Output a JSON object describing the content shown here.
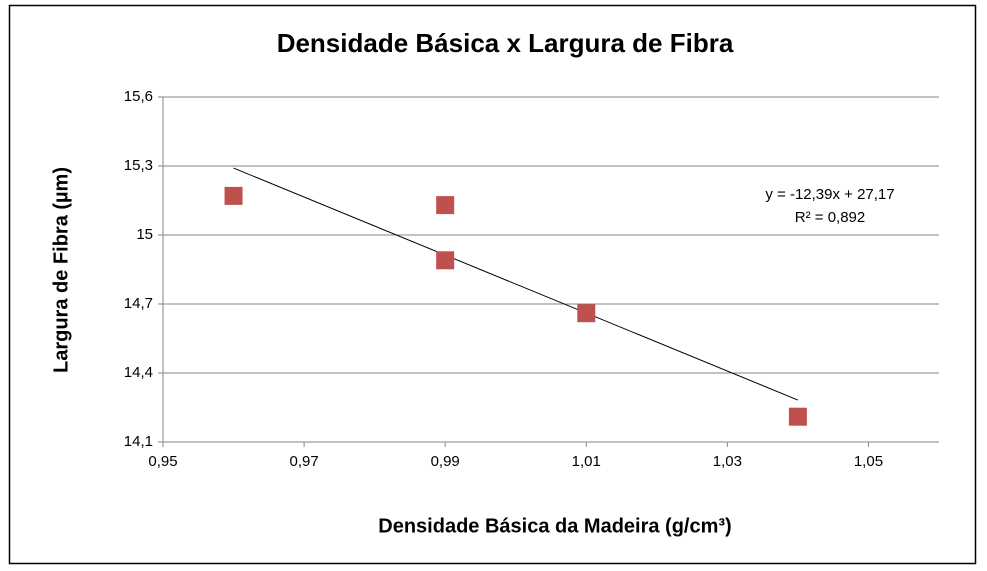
{
  "chart_data": {
    "type": "scatter",
    "title": "Densidade Básica x Largura de Fibra",
    "x_label": "Densidade Básica da Madeira (g/cm³)",
    "y_label": "Largura de Fibra (µm)",
    "annotations": [
      "y = -12,39x  + 27,17",
      "R² = 0,892"
    ],
    "series": [
      {
        "color": "#c0504d",
        "x": [
          0.96,
          0.99,
          0.99,
          1.01,
          1.04
        ],
        "values": [
          15.17,
          15.13,
          14.89,
          14.66,
          14.21
        ]
      }
    ],
    "trendline": "linear",
    "xlim": [
      0.95,
      1.06
    ],
    "xticks": [
      {
        "value": 0.95,
        "label": "0,95"
      },
      {
        "value": 0.97,
        "label": "0,97"
      },
      {
        "value": 0.99,
        "label": "0,99"
      },
      {
        "value": 1.01,
        "label": "1,01"
      },
      {
        "value": 1.03,
        "label": "1,03"
      },
      {
        "value": 1.05,
        "label": "1,05"
      }
    ],
    "ylim": [
      14.1,
      15.6
    ],
    "yticks": [
      {
        "value": 14.1,
        "label": "14,1"
      },
      {
        "value": 14.4,
        "label": "14,4"
      },
      {
        "value": 14.7,
        "label": "14,7"
      },
      15,
      {
        "value": 15.3,
        "label": "15,3"
      },
      {
        "value": 15.6,
        "label": "15,6"
      }
    ],
    "grid": true
  }
}
